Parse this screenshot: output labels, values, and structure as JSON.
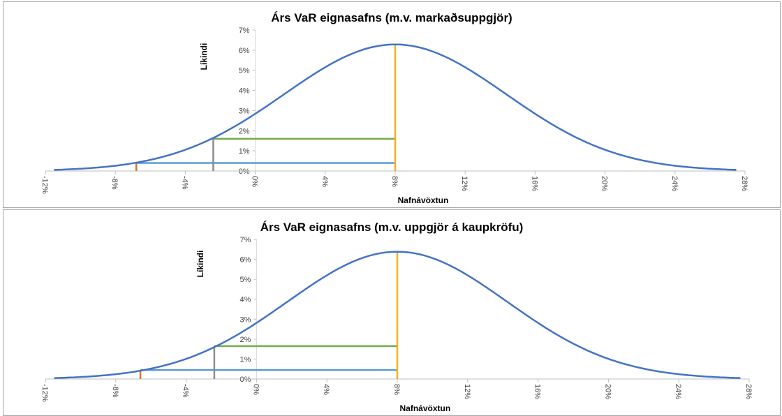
{
  "chart_data": [
    {
      "type": "line",
      "title": "Árs VaR eignasafns (m.v. markaðsuppgjör)",
      "xlabel": "Nafnávöxtun",
      "ylabel": "Líkindi",
      "x_ticks": [
        "-12%",
        "-8%",
        "-4%",
        "0%",
        "4%",
        "8%",
        "12%",
        "16%",
        "20%",
        "24%",
        "28%"
      ],
      "y_ticks": [
        "0%",
        "1%",
        "2%",
        "3%",
        "4%",
        "5%",
        "6%",
        "7%"
      ],
      "xlim": [
        -12,
        28
      ],
      "ylim": [
        0,
        7
      ],
      "grid": false,
      "curve": {
        "color": "#4472c4",
        "mean": 8,
        "sd": 6.35,
        "x_range": [
          -11.5,
          27.5
        ]
      },
      "markers": [
        {
          "x": 8,
          "y": 6.3,
          "color": "#f2b21c"
        },
        {
          "x": -2.4,
          "y": 1.6,
          "color": "#8c8c8c"
        },
        {
          "x": -6.8,
          "y": 0.4,
          "color": "#d8742a"
        }
      ],
      "levels": [
        {
          "y": 1.6,
          "x_from": -2.4,
          "x_to": 8,
          "color": "#70ad47"
        },
        {
          "y": 0.4,
          "x_from": -6.8,
          "x_to": 8,
          "color": "#5b9bd5"
        }
      ]
    },
    {
      "type": "line",
      "title": "Árs VaR eignasafns (m.v. uppgjör á kaupkröfu)",
      "xlabel": "Nafnávöxtun",
      "ylabel": "Líkindi",
      "x_ticks": [
        "-12%",
        "-8%",
        "-4%",
        "0%",
        "4%",
        "8%",
        "12%",
        "16%",
        "20%",
        "24%",
        "28%"
      ],
      "y_ticks": [
        "0%",
        "1%",
        "2%",
        "3%",
        "4%",
        "5%",
        "6%",
        "7%"
      ],
      "xlim": [
        -12,
        28
      ],
      "ylim": [
        0,
        7
      ],
      "grid": false,
      "curve": {
        "color": "#4472c4",
        "mean": 8,
        "sd": 6.25,
        "x_range": [
          -11.5,
          27.5
        ]
      },
      "markers": [
        {
          "x": 8,
          "y": 6.4,
          "color": "#f2b21c"
        },
        {
          "x": -2.4,
          "y": 1.65,
          "color": "#8c8c8c"
        },
        {
          "x": -6.6,
          "y": 0.45,
          "color": "#d8742a"
        }
      ],
      "levels": [
        {
          "y": 1.65,
          "x_from": -2.4,
          "x_to": 8,
          "color": "#70ad47"
        },
        {
          "y": 0.45,
          "x_from": -6.6,
          "x_to": 8,
          "color": "#5b9bd5"
        }
      ]
    }
  ]
}
